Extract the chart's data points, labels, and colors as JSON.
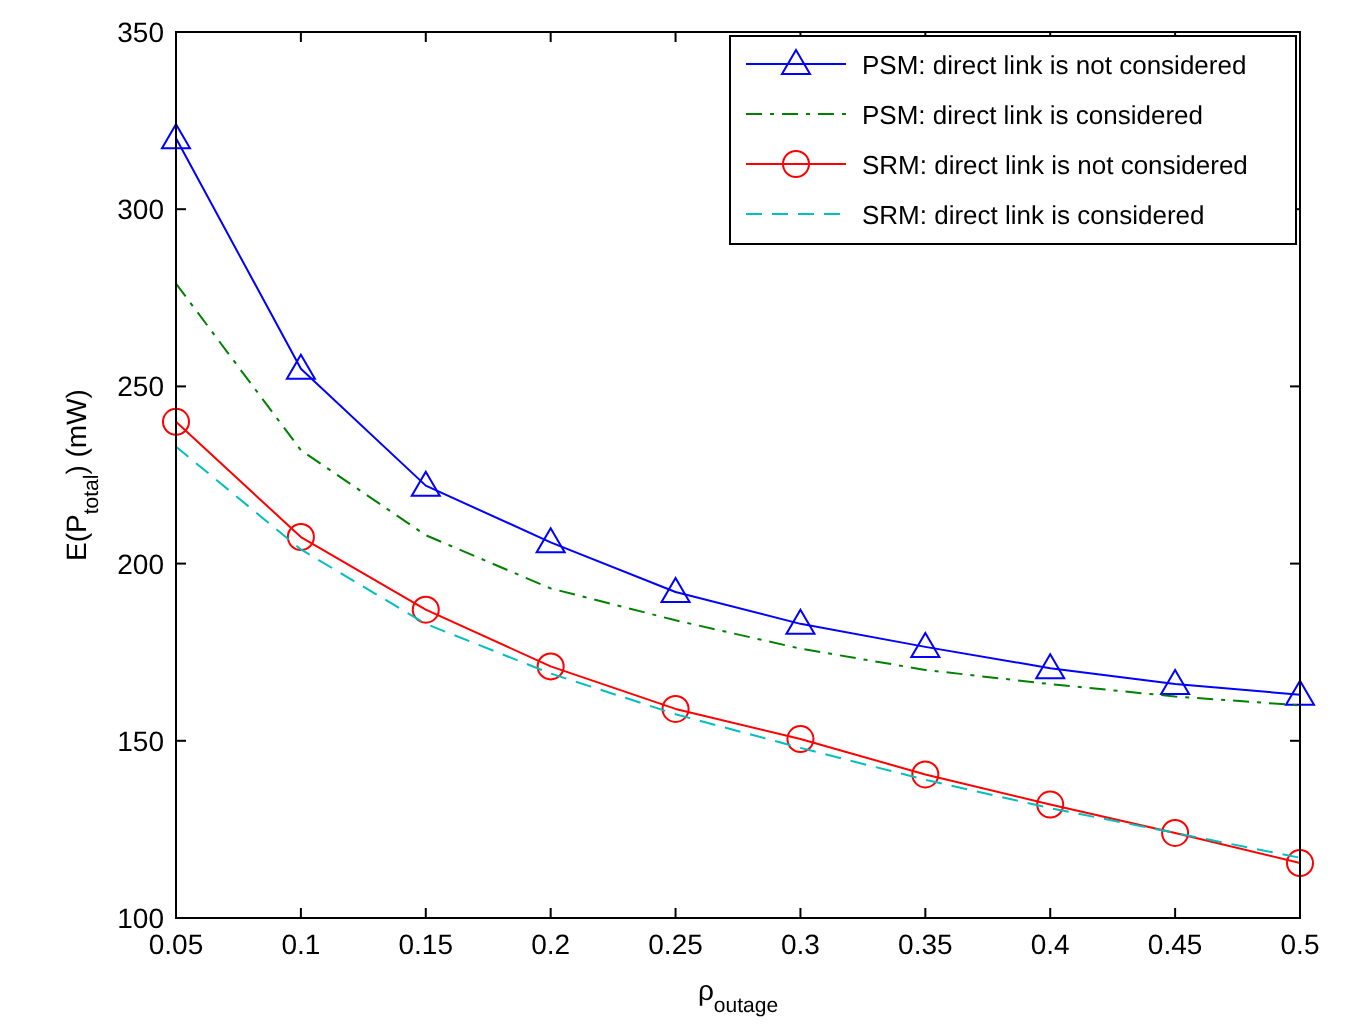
{
  "chart_data": {
    "type": "line",
    "xlabel": "ρ$_{outage}$",
    "ylabel": "E(P$_{total}$) (mW)",
    "x": [
      0.05,
      0.1,
      0.15,
      0.2,
      0.25,
      0.3,
      0.35,
      0.4,
      0.45,
      0.5
    ],
    "series": [
      {
        "name": "PSM: direct link is not considered",
        "color": "#0000ff",
        "marker": "triangle",
        "line_style": "solid",
        "values": [
          320,
          255,
          222,
          206,
          192,
          183,
          176.5,
          170.5,
          166,
          163
        ]
      },
      {
        "name": "PSM: direct link is considered",
        "color": "#008000",
        "marker": "none",
        "line_style": "dashdot",
        "values": [
          279,
          232,
          208,
          193,
          184,
          176,
          170,
          166,
          162.5,
          160
        ]
      },
      {
        "name": "SRM: direct link is not considered",
        "color": "#ff0000",
        "marker": "circle",
        "line_style": "solid",
        "values": [
          240,
          207.5,
          187,
          171,
          159,
          150.5,
          140.5,
          132,
          124,
          115.5
        ]
      },
      {
        "name": "SRM: direct link is considered",
        "color": "#00bfbf",
        "marker": "none",
        "line_style": "dashed",
        "values": [
          233,
          204,
          183,
          169,
          157.5,
          148,
          139,
          131,
          124,
          117
        ]
      }
    ],
    "xlim": [
      0.05,
      0.5
    ],
    "xticks": [
      0.05,
      0.1,
      0.15,
      0.2,
      0.25,
      0.3,
      0.35,
      0.4,
      0.45,
      0.5
    ],
    "ylim": [
      100,
      350
    ],
    "yticks": [
      100,
      150,
      200,
      250,
      300,
      350
    ],
    "grid": false,
    "legend": "top right"
  }
}
